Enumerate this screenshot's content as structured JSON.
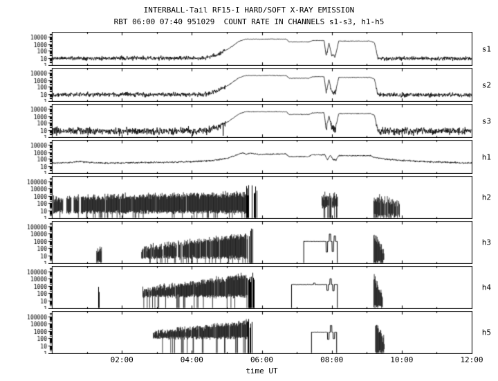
{
  "chart_data": {
    "type": "line",
    "title": "INTERBALL-Tail RF15-I HARD/SOFT X-RAY EMISSION",
    "subtitle": "RBT 06:00 07:40 951029  COUNT RATE IN CHANNELS s1-s3, h1-h5",
    "xlabel": "time UT",
    "x_range_hours": [
      0,
      12
    ],
    "x_ticks": [
      {
        "label": "02:00",
        "hour": 2
      },
      {
        "label": "04:00",
        "hour": 4
      },
      {
        "label": "06:00",
        "hour": 6
      },
      {
        "label": "08:00",
        "hour": 8
      },
      {
        "label": "10:00",
        "hour": 10
      },
      {
        "label": "12:00",
        "hour": 12
      }
    ],
    "colors": {
      "foreground": "#000000",
      "background": "#ffffff"
    },
    "panels": [
      {
        "label": "s1",
        "seed": 11,
        "style": "line",
        "ymax_dec": 4.6,
        "yticks": [
          {
            "label": "10000",
            "dec": 4
          },
          {
            "label": "1000",
            "dec": 3
          },
          {
            "label": "100",
            "dec": 2
          },
          {
            "label": "10",
            "dec": 1
          },
          {
            "label": "1",
            "dec": 0
          }
        ],
        "noise_base": 0.28,
        "noise_top": 0.05,
        "down_spike_p": 0,
        "envelope": [
          [
            0,
            9
          ],
          [
            4.35,
            9
          ],
          [
            4.7,
            25
          ],
          [
            5.05,
            200
          ],
          [
            5.35,
            2500
          ],
          [
            5.55,
            5000
          ],
          [
            6.7,
            5000
          ],
          [
            6.78,
            2000
          ],
          [
            7.35,
            2000
          ],
          [
            7.45,
            3200
          ],
          [
            7.78,
            3200
          ],
          [
            7.84,
            18
          ],
          [
            7.92,
            1200
          ],
          [
            8.0,
            22
          ],
          [
            8.1,
            16
          ],
          [
            8.2,
            2600
          ],
          [
            9.1,
            2600
          ],
          [
            9.22,
            1500
          ],
          [
            9.32,
            8
          ],
          [
            12,
            8
          ]
        ]
      },
      {
        "label": "s2",
        "seed": 22,
        "style": "line",
        "ymax_dec": 4.6,
        "yticks": [
          {
            "label": "10000",
            "dec": 4
          },
          {
            "label": "1000",
            "dec": 3
          },
          {
            "label": "100",
            "dec": 2
          },
          {
            "label": "10",
            "dec": 1
          },
          {
            "label": "1",
            "dec": 0
          }
        ],
        "noise_base": 0.3,
        "noise_top": 0.05,
        "down_spike_p": 0,
        "envelope": [
          [
            0,
            8
          ],
          [
            4.35,
            8
          ],
          [
            4.7,
            22
          ],
          [
            5.05,
            180
          ],
          [
            5.35,
            2200
          ],
          [
            5.55,
            4500
          ],
          [
            6.7,
            4500
          ],
          [
            6.78,
            1800
          ],
          [
            7.35,
            1800
          ],
          [
            7.45,
            3000
          ],
          [
            7.78,
            3000
          ],
          [
            7.84,
            15
          ],
          [
            7.92,
            1100
          ],
          [
            8.0,
            20
          ],
          [
            8.1,
            14
          ],
          [
            8.2,
            2400
          ],
          [
            9.1,
            2400
          ],
          [
            9.22,
            1400
          ],
          [
            9.32,
            7
          ],
          [
            12,
            7
          ]
        ]
      },
      {
        "label": "s3",
        "seed": 33,
        "style": "line",
        "ymax_dec": 4.6,
        "yticks": [
          {
            "label": "10000",
            "dec": 4
          },
          {
            "label": "1000",
            "dec": 3
          },
          {
            "label": "100",
            "dec": 2
          },
          {
            "label": "10",
            "dec": 1
          },
          {
            "label": "1",
            "dec": 0
          }
        ],
        "noise_base": 0.5,
        "noise_top": 0.05,
        "down_spike_p": 0.03,
        "envelope": [
          [
            0,
            7
          ],
          [
            4.35,
            7
          ],
          [
            4.7,
            20
          ],
          [
            5.05,
            170
          ],
          [
            5.35,
            2100
          ],
          [
            5.55,
            4200
          ],
          [
            6.7,
            4200
          ],
          [
            6.78,
            1700
          ],
          [
            7.35,
            1700
          ],
          [
            7.45,
            2900
          ],
          [
            7.78,
            2900
          ],
          [
            7.84,
            14
          ],
          [
            7.92,
            1000
          ],
          [
            8.0,
            18
          ],
          [
            8.1,
            13
          ],
          [
            8.2,
            2300
          ],
          [
            9.1,
            2300
          ],
          [
            9.22,
            1300
          ],
          [
            9.32,
            7
          ],
          [
            12,
            7
          ]
        ]
      },
      {
        "label": "h1",
        "seed": 44,
        "style": "line",
        "ymax_dec": 4.6,
        "yticks": [
          {
            "label": "10000",
            "dec": 4
          },
          {
            "label": "1000",
            "dec": 3
          },
          {
            "label": "100",
            "dec": 2
          },
          {
            "label": "10",
            "dec": 1
          },
          {
            "label": "1",
            "dec": 0
          }
        ],
        "noise_base": 0.12,
        "noise_top": 0.08,
        "down_spike_p": 0,
        "envelope": [
          [
            0,
            25
          ],
          [
            0.5,
            30
          ],
          [
            0.8,
            42
          ],
          [
            1.1,
            32
          ],
          [
            1.5,
            26
          ],
          [
            2.2,
            28
          ],
          [
            3.0,
            32
          ],
          [
            3.8,
            38
          ],
          [
            4.5,
            55
          ],
          [
            5.0,
            120
          ],
          [
            5.3,
            400
          ],
          [
            5.45,
            800
          ],
          [
            5.55,
            500
          ],
          [
            5.7,
            700
          ],
          [
            5.9,
            450
          ],
          [
            6.2,
            500
          ],
          [
            6.7,
            520
          ],
          [
            6.78,
            220
          ],
          [
            7.35,
            220
          ],
          [
            7.42,
            420
          ],
          [
            7.7,
            380
          ],
          [
            7.8,
            420
          ],
          [
            7.88,
            70
          ],
          [
            7.96,
            350
          ],
          [
            8.04,
            80
          ],
          [
            8.12,
            70
          ],
          [
            8.2,
            300
          ],
          [
            9.1,
            300
          ],
          [
            9.2,
            180
          ],
          [
            9.5,
            100
          ],
          [
            10.0,
            60
          ],
          [
            10.8,
            40
          ],
          [
            11.5,
            30
          ],
          [
            12,
            26
          ]
        ]
      },
      {
        "label": "h2",
        "seed": 55,
        "style": "elements",
        "ymax_dec": 5.6,
        "yticks": [
          {
            "label": "100000",
            "dec": 5
          },
          {
            "label": "10000",
            "dec": 4
          },
          {
            "label": "1000",
            "dec": 3
          },
          {
            "label": "100",
            "dec": 2
          },
          {
            "label": "10",
            "dec": 1
          },
          {
            "label": "1",
            "dec": 0
          }
        ],
        "elements": [
          {
            "type": "band",
            "t0": 0.05,
            "t1": 5.55,
            "lo": 6,
            "hi0": 500,
            "hi1": 1800,
            "noise": 0.45,
            "drop_p": 0.1,
            "gap_p": 0.03,
            "holes": [
              [
                0.32,
                0.42
              ],
              [
                0.55,
                0.62
              ],
              [
                0.78,
                0.83
              ]
            ]
          },
          {
            "type": "spikes",
            "t0": 5.55,
            "t1": 5.85,
            "hi": 30000,
            "n": 14
          },
          {
            "type": "band",
            "t0": 7.72,
            "t1": 8.18,
            "lo": 30,
            "hi0": 900,
            "hi1": 900,
            "noise": 0.55,
            "drop_p": 0.3,
            "gap_p": 0.12,
            "holes": []
          },
          {
            "type": "band",
            "t0": 9.2,
            "t1": 9.95,
            "lo": 2,
            "hi0": 600,
            "hi1": 60,
            "noise": 0.7,
            "drop_p": 0.3,
            "gap_p": 0.08,
            "holes": []
          }
        ]
      },
      {
        "label": "h3",
        "seed": 66,
        "style": "elements",
        "ymax_dec": 5.6,
        "yticks": [
          {
            "label": "100000",
            "dec": 5
          },
          {
            "label": "10000",
            "dec": 4
          },
          {
            "label": "1000",
            "dec": 3
          },
          {
            "label": "100",
            "dec": 2
          },
          {
            "label": "10",
            "dec": 1
          },
          {
            "label": "1",
            "dec": 0
          }
        ],
        "elements": [
          {
            "type": "band",
            "t0": 1.28,
            "t1": 1.42,
            "lo": 1.5,
            "hi0": 70,
            "hi1": 70,
            "noise": 0.35,
            "drop_p": 0.25,
            "gap_p": 0,
            "holes": []
          },
          {
            "type": "band",
            "t0": 2.55,
            "t1": 5.6,
            "lo": 5,
            "hi0": 90,
            "hi1": 7000,
            "noise": 0.45,
            "drop_p": 0.15,
            "gap_p": 0.05,
            "holes": []
          },
          {
            "type": "spikes",
            "t0": 5.6,
            "t1": 5.75,
            "hi": 50000,
            "n": 9
          },
          {
            "type": "pulse",
            "t0": 7.2,
            "t1": 8.16,
            "level": 900,
            "noise": 0.1,
            "features": [
              {
                "t": 7.86,
                "v": 30
              },
              {
                "t": 7.95,
                "v": 9000
              },
              {
                "t": 8.03,
                "v": 35
              },
              {
                "t": 8.09,
                "v": 5000
              }
            ]
          },
          {
            "type": "band",
            "t0": 9.2,
            "t1": 9.5,
            "lo": 1.5,
            "hi0": 5000,
            "hi1": 50,
            "noise": 0.6,
            "drop_p": 0.3,
            "gap_p": 0,
            "holes": []
          }
        ]
      },
      {
        "label": "h4",
        "seed": 77,
        "style": "elements",
        "ymax_dec": 5.6,
        "yticks": [
          {
            "label": "100000",
            "dec": 5
          },
          {
            "label": "10000",
            "dec": 4
          },
          {
            "label": "1000",
            "dec": 3
          },
          {
            "label": "100",
            "dec": 2
          },
          {
            "label": "10",
            "dec": 1
          },
          {
            "label": "1",
            "dec": 0
          }
        ],
        "elements": [
          {
            "type": "spikes",
            "t0": 1.3,
            "t1": 1.36,
            "hi": 900,
            "n": 2
          },
          {
            "type": "band",
            "t0": 2.6,
            "t1": 5.6,
            "lo": 40,
            "hi0": 300,
            "hi1": 25000,
            "noise": 0.45,
            "drop_p": 0.12,
            "gap_p": 0.04,
            "holes": []
          },
          {
            "type": "spikes",
            "t0": 5.6,
            "t1": 5.78,
            "hi": 100000,
            "n": 11
          },
          {
            "type": "pulse",
            "t0": 6.85,
            "t1": 8.16,
            "level": 1600,
            "noise": 0.1,
            "features": [
              {
                "t": 7.5,
                "v": 2600
              },
              {
                "t": 7.88,
                "v": 250
              },
              {
                "t": 7.97,
                "v": 10000
              },
              {
                "t": 8.05,
                "v": 220
              }
            ]
          },
          {
            "type": "band",
            "t0": 9.2,
            "t1": 9.45,
            "lo": 1.5,
            "hi0": 20000,
            "hi1": 40,
            "noise": 0.6,
            "drop_p": 0.25,
            "gap_p": 0,
            "holes": []
          }
        ]
      },
      {
        "label": "h5",
        "seed": 88,
        "style": "elements",
        "ymax_dec": 5.6,
        "yticks": [
          {
            "label": "100000",
            "dec": 5
          },
          {
            "label": "10000",
            "dec": 4
          },
          {
            "label": "1000",
            "dec": 3
          },
          {
            "label": "100",
            "dec": 2
          },
          {
            "label": "10",
            "dec": 1
          },
          {
            "label": "1",
            "dec": 0
          }
        ],
        "elements": [
          {
            "type": "band",
            "t0": 2.9,
            "t1": 5.6,
            "lo": 120,
            "hi0": 600,
            "hi1": 18000,
            "noise": 0.4,
            "drop_p": 0.08,
            "gap_p": 0.04,
            "holes": []
          },
          {
            "type": "spikes",
            "t0": 5.6,
            "t1": 5.75,
            "hi": 90000,
            "n": 8
          },
          {
            "type": "pulse",
            "t0": 7.42,
            "t1": 8.14,
            "level": 700,
            "noise": 0.12,
            "features": [
              {
                "t": 7.9,
                "v": 70
              },
              {
                "t": 7.98,
                "v": 6000
              },
              {
                "t": 8.06,
                "v": 90
              }
            ]
          },
          {
            "type": "band",
            "t0": 9.25,
            "t1": 9.5,
            "lo": 1.5,
            "hi0": 9000,
            "hi1": 50,
            "noise": 0.6,
            "drop_p": 0.3,
            "gap_p": 0,
            "holes": []
          }
        ]
      }
    ]
  }
}
